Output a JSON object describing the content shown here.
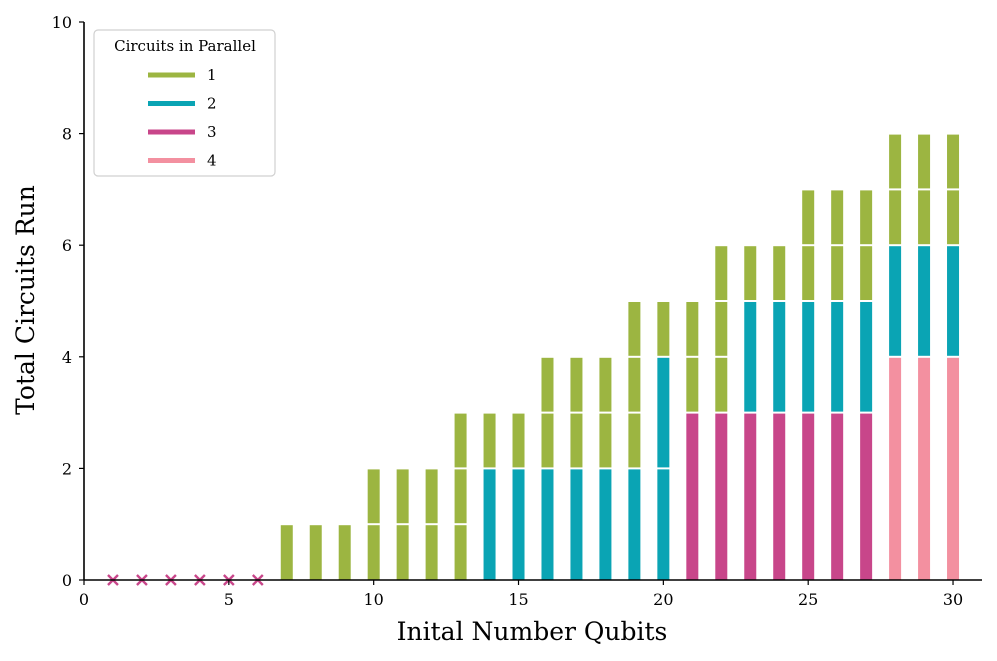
{
  "chart_data": {
    "type": "bar",
    "stacked": true,
    "xlabel": "Inital Number Qubits",
    "ylabel": "Total Circuits Run",
    "xlim": [
      0,
      31
    ],
    "ylim": [
      0,
      10
    ],
    "xticks": [
      0,
      5,
      10,
      15,
      20,
      25,
      30
    ],
    "yticks": [
      0,
      2,
      4,
      6,
      8,
      10
    ],
    "grid": false,
    "legend": {
      "title": "Circuits in Parallel",
      "placement": "top-left",
      "entries": [
        {
          "label": "1",
          "color": "#9cb541"
        },
        {
          "label": "2",
          "color": "#0aa4b4"
        },
        {
          "label": "3",
          "color": "#c8468a"
        },
        {
          "label": "4",
          "color": "#f390a0"
        }
      ]
    },
    "failed_marker": {
      "symbol": "x",
      "color": "#c8468a",
      "x": [
        1,
        2,
        3,
        4,
        5,
        6
      ],
      "y": 0
    },
    "x": [
      7,
      8,
      9,
      10,
      11,
      12,
      13,
      14,
      15,
      16,
      17,
      18,
      19,
      20,
      21,
      22,
      23,
      24,
      25,
      26,
      27,
      28,
      29,
      30
    ],
    "stacks": [
      [
        {
          "p": 1,
          "v": 1
        }
      ],
      [
        {
          "p": 1,
          "v": 1
        }
      ],
      [
        {
          "p": 1,
          "v": 1
        }
      ],
      [
        {
          "p": 1,
          "v": 1
        },
        {
          "p": 1,
          "v": 1
        }
      ],
      [
        {
          "p": 1,
          "v": 1
        },
        {
          "p": 1,
          "v": 1
        }
      ],
      [
        {
          "p": 1,
          "v": 1
        },
        {
          "p": 1,
          "v": 1
        }
      ],
      [
        {
          "p": 1,
          "v": 1
        },
        {
          "p": 1,
          "v": 1
        },
        {
          "p": 1,
          "v": 1
        }
      ],
      [
        {
          "p": 2,
          "v": 2
        },
        {
          "p": 1,
          "v": 1
        }
      ],
      [
        {
          "p": 2,
          "v": 2
        },
        {
          "p": 1,
          "v": 1
        }
      ],
      [
        {
          "p": 2,
          "v": 2
        },
        {
          "p": 1,
          "v": 1
        },
        {
          "p": 1,
          "v": 1
        }
      ],
      [
        {
          "p": 2,
          "v": 2
        },
        {
          "p": 1,
          "v": 1
        },
        {
          "p": 1,
          "v": 1
        }
      ],
      [
        {
          "p": 2,
          "v": 2
        },
        {
          "p": 1,
          "v": 1
        },
        {
          "p": 1,
          "v": 1
        }
      ],
      [
        {
          "p": 2,
          "v": 2
        },
        {
          "p": 1,
          "v": 1
        },
        {
          "p": 1,
          "v": 1
        },
        {
          "p": 1,
          "v": 1
        }
      ],
      [
        {
          "p": 2,
          "v": 2
        },
        {
          "p": 2,
          "v": 2
        },
        {
          "p": 1,
          "v": 1
        }
      ],
      [
        {
          "p": 3,
          "v": 3
        },
        {
          "p": 1,
          "v": 1
        },
        {
          "p": 1,
          "v": 1
        }
      ],
      [
        {
          "p": 3,
          "v": 3
        },
        {
          "p": 1,
          "v": 1
        },
        {
          "p": 1,
          "v": 1
        },
        {
          "p": 1,
          "v": 1
        }
      ],
      [
        {
          "p": 3,
          "v": 3
        },
        {
          "p": 2,
          "v": 2
        },
        {
          "p": 1,
          "v": 1
        }
      ],
      [
        {
          "p": 3,
          "v": 3
        },
        {
          "p": 2,
          "v": 2
        },
        {
          "p": 1,
          "v": 1
        }
      ],
      [
        {
          "p": 3,
          "v": 3
        },
        {
          "p": 2,
          "v": 2
        },
        {
          "p": 1,
          "v": 1
        },
        {
          "p": 1,
          "v": 1
        }
      ],
      [
        {
          "p": 3,
          "v": 3
        },
        {
          "p": 2,
          "v": 2
        },
        {
          "p": 1,
          "v": 1
        },
        {
          "p": 1,
          "v": 1
        }
      ],
      [
        {
          "p": 3,
          "v": 3
        },
        {
          "p": 2,
          "v": 2
        },
        {
          "p": 1,
          "v": 1
        },
        {
          "p": 1,
          "v": 1
        }
      ],
      [
        {
          "p": 4,
          "v": 4
        },
        {
          "p": 2,
          "v": 2
        },
        {
          "p": 1,
          "v": 1
        },
        {
          "p": 1,
          "v": 1
        }
      ],
      [
        {
          "p": 4,
          "v": 4
        },
        {
          "p": 2,
          "v": 2
        },
        {
          "p": 1,
          "v": 1
        },
        {
          "p": 1,
          "v": 1
        }
      ],
      [
        {
          "p": 4,
          "v": 4
        },
        {
          "p": 2,
          "v": 2
        },
        {
          "p": 1,
          "v": 1
        },
        {
          "p": 1,
          "v": 1
        }
      ]
    ]
  }
}
